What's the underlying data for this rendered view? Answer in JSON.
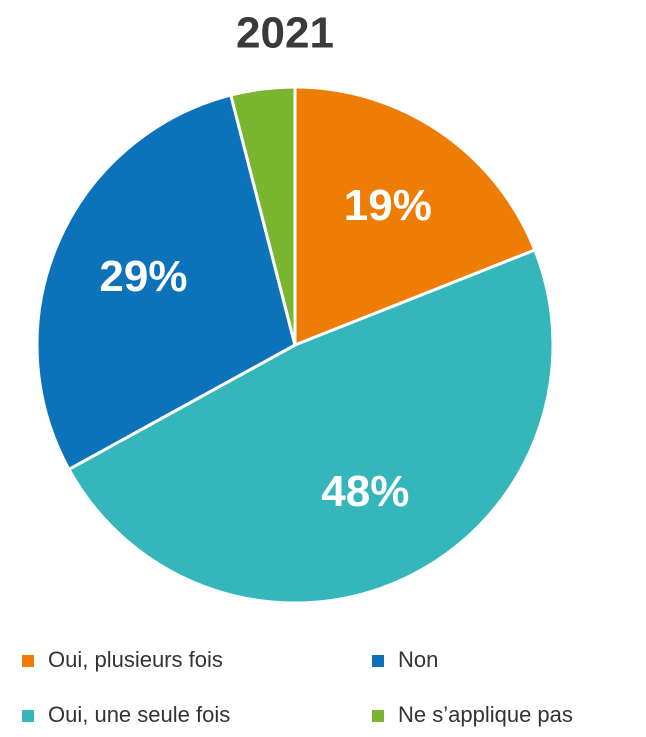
{
  "chart_data": {
    "type": "pie",
    "title": "2021",
    "categories": [
      "Oui, plusieurs fois",
      "Oui, une seule fois",
      "Non",
      "Ne s’applique pas"
    ],
    "values": [
      19,
      48,
      29,
      4
    ],
    "value_labels": [
      "19%",
      "48%",
      "29%",
      null
    ],
    "colors": [
      "#EE7D05",
      "#35B6BA",
      "#0C72BA",
      "#79B52E"
    ],
    "legend": "bottom"
  }
}
